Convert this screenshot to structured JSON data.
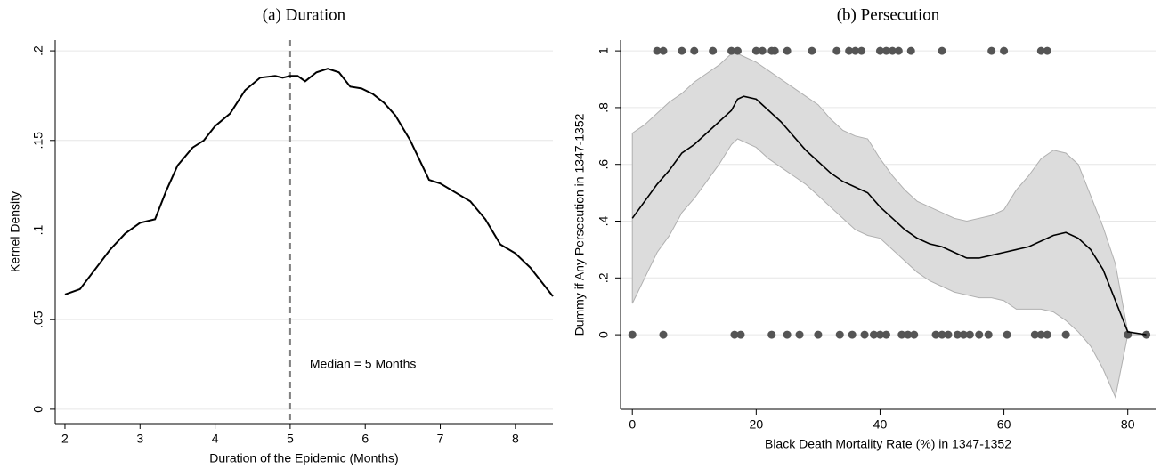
{
  "chart_data": [
    {
      "type": "line",
      "title": "(a) Duration",
      "xlabel": "Duration of the Epidemic (Months)",
      "ylabel": "Kernel Density",
      "x": [
        2.0,
        2.2,
        2.4,
        2.6,
        2.8,
        3.0,
        3.2,
        3.35,
        3.5,
        3.7,
        3.85,
        4.0,
        4.2,
        4.4,
        4.6,
        4.8,
        4.9,
        5.0,
        5.1,
        5.2,
        5.35,
        5.5,
        5.65,
        5.8,
        5.95,
        6.1,
        6.25,
        6.4,
        6.6,
        6.85,
        7.0,
        7.2,
        7.4,
        7.6,
        7.8,
        8.0,
        8.2,
        8.5
      ],
      "values": [
        0.064,
        0.067,
        0.078,
        0.089,
        0.098,
        0.104,
        0.106,
        0.122,
        0.136,
        0.146,
        0.15,
        0.158,
        0.165,
        0.178,
        0.185,
        0.186,
        0.185,
        0.186,
        0.186,
        0.183,
        0.188,
        0.19,
        0.188,
        0.18,
        0.179,
        0.176,
        0.171,
        0.164,
        0.15,
        0.128,
        0.126,
        0.121,
        0.116,
        0.106,
        0.092,
        0.087,
        0.079,
        0.063
      ],
      "color": "#000000",
      "vline": 5,
      "vline_color": "#808080",
      "annotation": "Median = 5 Months",
      "xlim": [
        1.87,
        8.5
      ],
      "xticks": [
        2,
        3,
        4,
        5,
        6,
        7,
        8
      ],
      "ylim": [
        -0.008,
        0.206
      ],
      "yticks": [
        0,
        {
          "value": 0.05,
          "label": ".05"
        },
        {
          "value": 0.1,
          "label": ".1"
        },
        {
          "value": 0.15,
          "label": ".15"
        },
        {
          "value": 0.2,
          "label": ".2"
        }
      ],
      "grid": true
    },
    {
      "type": "scatter",
      "title": "(b) Persecution",
      "xlabel": "Black Death Mortality Rate (%) in 1347-1352",
      "ylabel": "Dummy if Any Persecution in 1347-1352",
      "points": {
        "x": [
          4,
          5,
          8,
          10,
          13,
          16,
          17,
          20,
          21,
          22.5,
          23,
          25,
          29,
          33,
          35,
          36,
          37,
          40,
          41,
          42,
          43,
          45,
          50,
          58,
          60,
          66,
          67,
          0,
          5,
          16.5,
          17.5,
          22.5,
          25,
          27,
          30,
          33.5,
          35.5,
          37.5,
          39,
          40,
          41,
          43.5,
          44.5,
          45.5,
          49,
          50,
          51,
          52.5,
          53.5,
          54.5,
          56,
          57.5,
          60.5,
          65,
          66,
          67,
          70,
          80,
          83
        ],
        "y": [
          1,
          1,
          1,
          1,
          1,
          1,
          1,
          1,
          1,
          1,
          1,
          1,
          1,
          1,
          1,
          1,
          1,
          1,
          1,
          1,
          1,
          1,
          1,
          1,
          1,
          1,
          1,
          0,
          0,
          0,
          0,
          0,
          0,
          0,
          0,
          0,
          0,
          0,
          0,
          0,
          0,
          0,
          0,
          0,
          0,
          0,
          0,
          0,
          0,
          0,
          0,
          0,
          0,
          0,
          0,
          0,
          0,
          0,
          0
        ],
        "color": "#555555"
      },
      "fit": {
        "x": [
          0,
          2,
          4,
          6,
          8,
          10,
          12,
          14,
          16,
          17,
          18,
          20,
          22,
          24,
          26,
          28,
          30,
          32,
          34,
          36,
          38,
          40,
          42,
          44,
          46,
          48,
          50,
          52,
          54,
          56,
          58,
          60,
          62,
          64,
          66,
          68,
          70,
          72,
          74,
          76,
          78,
          80,
          83
        ],
        "values": [
          0.41,
          0.47,
          0.53,
          0.58,
          0.64,
          0.67,
          0.71,
          0.75,
          0.79,
          0.83,
          0.84,
          0.83,
          0.79,
          0.75,
          0.7,
          0.65,
          0.61,
          0.57,
          0.54,
          0.52,
          0.5,
          0.45,
          0.41,
          0.37,
          0.34,
          0.32,
          0.31,
          0.29,
          0.27,
          0.27,
          0.28,
          0.29,
          0.3,
          0.31,
          0.33,
          0.35,
          0.36,
          0.34,
          0.3,
          0.23,
          0.12,
          0.01,
          0
        ],
        "upper": [
          0.71,
          0.74,
          0.78,
          0.82,
          0.85,
          0.89,
          0.92,
          0.95,
          0.99,
          0.99,
          0.98,
          0.96,
          0.93,
          0.9,
          0.87,
          0.84,
          0.81,
          0.76,
          0.72,
          0.7,
          0.69,
          0.62,
          0.56,
          0.51,
          0.47,
          0.45,
          0.43,
          0.41,
          0.4,
          0.41,
          0.42,
          0.44,
          0.51,
          0.56,
          0.62,
          0.65,
          0.64,
          0.6,
          0.49,
          0.38,
          0.25,
          0.01,
          0
        ],
        "lower": [
          0.11,
          0.2,
          0.29,
          0.35,
          0.43,
          0.48,
          0.54,
          0.6,
          0.67,
          0.69,
          0.68,
          0.66,
          0.62,
          0.59,
          0.56,
          0.53,
          0.49,
          0.45,
          0.41,
          0.37,
          0.35,
          0.34,
          0.3,
          0.26,
          0.22,
          0.19,
          0.17,
          0.15,
          0.14,
          0.13,
          0.13,
          0.12,
          0.09,
          0.09,
          0.09,
          0.08,
          0.05,
          0.01,
          -0.04,
          -0.12,
          -0.22,
          0,
          0
        ],
        "color": "#000000",
        "band_color": "#dcdcdc",
        "band_edge": "#b0b0b0"
      },
      "xlim": [
        -1.9,
        84.5
      ],
      "xticks": [
        0,
        20,
        40,
        60,
        80
      ],
      "ylim": [
        -0.263,
        1.038
      ],
      "yticks": [
        0,
        {
          "value": 0.2,
          "label": ".2"
        },
        {
          "value": 0.4,
          "label": ".4"
        },
        {
          "value": 0.6,
          "label": ".6"
        },
        {
          "value": 0.8,
          "label": ".8"
        },
        1
      ],
      "grid": true
    }
  ]
}
